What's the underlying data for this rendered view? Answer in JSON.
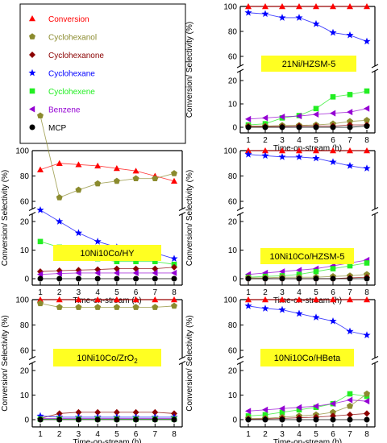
{
  "colors": {
    "Conversion": "#ff0000",
    "Cyclohexanol": "#8b8b2e",
    "Cyclohexanone": "#8b0000",
    "Cyclohexane": "#0000ff",
    "Cyclohexene": "#22ee22",
    "Benzene": "#9400d3",
    "MCP": "#000000",
    "panel_label_bg": "#ffff22"
  },
  "legend": {
    "entries": [
      {
        "name": "Conversion",
        "marker": "triangle-up"
      },
      {
        "name": "Cyclohexanol",
        "marker": "pentagon"
      },
      {
        "name": "Cyclohexanone",
        "marker": "diamond"
      },
      {
        "name": "Cyclohexane",
        "marker": "star"
      },
      {
        "name": "Cyclohexene",
        "marker": "square"
      },
      {
        "name": "Benzene",
        "marker": "triangle-left"
      },
      {
        "name": "MCP",
        "marker": "circle"
      }
    ]
  },
  "chart_data": [
    {
      "type": "line",
      "label": "21Ni/HZSM-5",
      "xlabel": "Time-on-stream (h)",
      "ylabel": "Conversion/ Selectivity (%)",
      "x": [
        1,
        2,
        3,
        4,
        5,
        6,
        7,
        8
      ],
      "xticks": [
        "1",
        "2",
        "3",
        "4",
        "5",
        "6",
        "7",
        "8"
      ],
      "yticks_lower": [
        "0",
        "10",
        "20"
      ],
      "yticks_upper": [
        "60",
        "80",
        "100"
      ],
      "series": [
        {
          "name": "Conversion",
          "values": [
            100,
            100,
            100,
            100,
            100,
            100,
            100,
            100
          ]
        },
        {
          "name": "Cyclohexane",
          "values": [
            95,
            94,
            91,
            91,
            86,
            79,
            77,
            72
          ]
        },
        {
          "name": "Cyclohexene",
          "values": [
            1.0,
            1.5,
            4.0,
            5.0,
            8.0,
            13.0,
            14.0,
            15.5
          ]
        },
        {
          "name": "Benzene",
          "values": [
            3.5,
            4.0,
            4.5,
            4.8,
            5.5,
            6.0,
            6.5,
            8.0
          ]
        },
        {
          "name": "Cyclohexanol",
          "values": [
            0.5,
            0.5,
            0.8,
            0.8,
            1.0,
            1.5,
            2.5,
            3.0
          ]
        },
        {
          "name": "Cyclohexanone",
          "values": [
            0.3,
            0.3,
            0.3,
            0.5,
            0.5,
            0.5,
            1.0,
            1.0
          ]
        },
        {
          "name": "MCP",
          "values": [
            0,
            0,
            0,
            0,
            0,
            0,
            0,
            0.5
          ]
        }
      ]
    },
    {
      "type": "line",
      "label": "10Ni10Co/HY",
      "xlabel": "Time-on-stream (h)",
      "ylabel": "Conversion/ Selectivity (%)",
      "x": [
        1,
        2,
        3,
        4,
        5,
        6,
        7,
        8
      ],
      "xticks": [
        "1",
        "2",
        "3",
        "4",
        "5",
        "6",
        "7",
        "8"
      ],
      "yticks_lower": [
        "0",
        "10",
        "20"
      ],
      "yticks_upper": [
        "60",
        "80",
        "100"
      ],
      "series": [
        {
          "name": "Conversion",
          "values": [
            85,
            90,
            89,
            88,
            86,
            84,
            80,
            76
          ]
        },
        {
          "name": "Cyclohexanol",
          "values": [
            57,
            63,
            69,
            74,
            76,
            78,
            78,
            82
          ]
        },
        {
          "name": "Cyclohexane",
          "values": [
            24,
            20,
            16,
            13,
            11,
            10,
            9,
            7
          ]
        },
        {
          "name": "Cyclohexene",
          "values": [
            13,
            11,
            9,
            7,
            6,
            6,
            6,
            5
          ]
        },
        {
          "name": "Cyclohexanone",
          "values": [
            2.5,
            2.8,
            3.0,
            3.2,
            3.5,
            3.5,
            3.5,
            4.0
          ]
        },
        {
          "name": "Benzene",
          "values": [
            1.5,
            1.8,
            2.0,
            2.0,
            2.0,
            2.0,
            2.0,
            2.0
          ]
        },
        {
          "name": "MCP",
          "values": [
            0,
            0,
            0,
            0,
            0,
            0,
            0,
            0
          ]
        }
      ]
    },
    {
      "type": "line",
      "label": "10Ni10Co/HZSM-5",
      "xlabel": "Time-on-stream (h)",
      "ylabel": "Conversion/ Selectivity (%)",
      "x": [
        1,
        2,
        3,
        4,
        5,
        6,
        7,
        8
      ],
      "xticks": [
        "1",
        "2",
        "3",
        "4",
        "5",
        "6",
        "7",
        "8"
      ],
      "yticks_lower": [
        "0",
        "10",
        "20"
      ],
      "yticks_upper": [
        "60",
        "80",
        "100"
      ],
      "series": [
        {
          "name": "Conversion",
          "values": [
            100,
            100,
            100,
            100,
            100,
            100,
            100,
            100
          ]
        },
        {
          "name": "Cyclohexane",
          "values": [
            97,
            96,
            95,
            95,
            94,
            91,
            88,
            86
          ]
        },
        {
          "name": "Benzene",
          "values": [
            1.5,
            2.0,
            2.5,
            3.0,
            3.5,
            4.5,
            5.5,
            6.5
          ]
        },
        {
          "name": "Cyclohexene",
          "values": [
            0.5,
            0.8,
            1.0,
            1.5,
            2.5,
            3.5,
            4.5,
            5.5
          ]
        },
        {
          "name": "Cyclohexanol",
          "values": [
            0.3,
            0.3,
            0.5,
            0.5,
            0.5,
            0.8,
            1.0,
            1.5
          ]
        },
        {
          "name": "Cyclohexanone",
          "values": [
            0,
            0,
            0,
            0,
            0,
            0,
            0.3,
            0.5
          ]
        },
        {
          "name": "MCP",
          "values": [
            0,
            0,
            0,
            0,
            0,
            0,
            0,
            0
          ]
        }
      ]
    },
    {
      "type": "line",
      "label": "10Ni10Co/ZrO",
      "label_sub": "2",
      "xlabel": "Time-on-stream (h)",
      "ylabel": "Conversion/ Selectivity (%)",
      "x": [
        1,
        2,
        3,
        4,
        5,
        6,
        7,
        8
      ],
      "xticks": [
        "1",
        "2",
        "3",
        "4",
        "5",
        "6",
        "7",
        "8"
      ],
      "yticks_lower": [
        "0",
        "10",
        "20"
      ],
      "yticks_upper": [
        "60",
        "80",
        "100"
      ],
      "series": [
        {
          "name": "Conversion",
          "values": [
            100,
            100,
            100,
            100,
            100,
            100,
            100,
            100
          ]
        },
        {
          "name": "Cyclohexanol",
          "values": [
            97,
            94,
            94,
            94,
            94,
            94,
            94,
            95
          ]
        },
        {
          "name": "Cyclohexanone",
          "values": [
            0.5,
            2.5,
            3.0,
            3.0,
            3.0,
            3.0,
            3.0,
            2.5
          ]
        },
        {
          "name": "Cyclohexane",
          "values": [
            1.5,
            1.0,
            1.0,
            1.0,
            1.0,
            1.0,
            1.0,
            1.0
          ]
        },
        {
          "name": "Benzene",
          "values": [
            0.5,
            0.5,
            0.5,
            0.5,
            0.5,
            0.5,
            0.5,
            0.5
          ]
        },
        {
          "name": "Cyclohexene",
          "values": [
            0.2,
            0.2,
            0.2,
            0.2,
            0.2,
            0.2,
            0.2,
            0.2
          ]
        },
        {
          "name": "MCP",
          "values": [
            0,
            0,
            0,
            0,
            0,
            0,
            0,
            0
          ]
        }
      ]
    },
    {
      "type": "line",
      "label": "10Ni10Co/HBeta",
      "xlabel": "Time-on-stream (h)",
      "ylabel": "Conversion/ Selectivity (%)",
      "x": [
        1,
        2,
        3,
        4,
        5,
        6,
        7,
        8
      ],
      "xticks": [
        "1",
        "2",
        "3",
        "4",
        "5",
        "6",
        "7",
        "8"
      ],
      "yticks_lower": [
        "0",
        "10",
        "20"
      ],
      "yticks_upper": [
        "60",
        "80",
        "100"
      ],
      "series": [
        {
          "name": "Conversion",
          "values": [
            100,
            100,
            100,
            100,
            100,
            100,
            100,
            100
          ]
        },
        {
          "name": "Cyclohexane",
          "values": [
            95,
            93,
            92,
            89,
            86,
            83,
            75,
            72
          ]
        },
        {
          "name": "Cyclohexene",
          "values": [
            1.5,
            2.0,
            3.0,
            4.0,
            5.0,
            6.5,
            10.5,
            9.5
          ]
        },
        {
          "name": "Benzene",
          "values": [
            3.5,
            4.0,
            4.5,
            5.0,
            5.5,
            6.5,
            8.0,
            7.5
          ]
        },
        {
          "name": "Cyclohexanol",
          "values": [
            0.5,
            0.5,
            1.0,
            1.5,
            2.0,
            3.0,
            5.5,
            10.5
          ]
        },
        {
          "name": "Cyclohexanone",
          "values": [
            0.2,
            0.3,
            0.5,
            0.8,
            1.0,
            1.5,
            2.0,
            2.5
          ]
        },
        {
          "name": "MCP",
          "values": [
            0,
            0,
            0,
            0,
            0,
            0,
            0,
            0
          ]
        }
      ]
    }
  ]
}
